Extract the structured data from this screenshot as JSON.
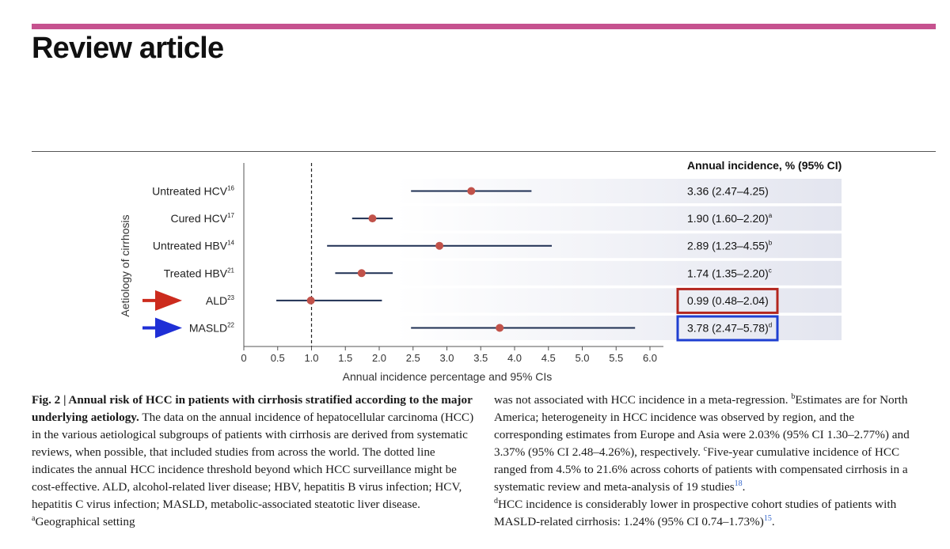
{
  "page": {
    "header_title": "Review article"
  },
  "chart_data": {
    "type": "forest",
    "ylabel": "Aetiology of cirrhosis",
    "xlabel": "Annual incidence percentage and 95% CIs",
    "xlim": [
      0,
      6.0
    ],
    "x_ticks": [
      "0",
      "0.5",
      "1.0",
      "1.5",
      "2.0",
      "2.5",
      "3.0",
      "3.5",
      "4.0",
      "4.5",
      "5.0",
      "5.5",
      "6.0"
    ],
    "threshold": 1.0,
    "table_header": "Annual incidence, % (95% CI)",
    "rows": [
      {
        "label": "Untreated HCV",
        "ref": "16",
        "estimate": 3.36,
        "lower": 2.47,
        "upper": 4.25,
        "text": "3.36 (2.47–4.25)",
        "note": ""
      },
      {
        "label": "Cured HCV",
        "ref": "17",
        "estimate": 1.9,
        "lower": 1.6,
        "upper": 2.2,
        "text": "1.90 (1.60–2.20)",
        "note": "a"
      },
      {
        "label": "Untreated HBV",
        "ref": "14",
        "estimate": 2.89,
        "lower": 1.23,
        "upper": 4.55,
        "text": "2.89 (1.23–4.55)",
        "note": "b"
      },
      {
        "label": "Treated HBV",
        "ref": "21",
        "estimate": 1.74,
        "lower": 1.35,
        "upper": 2.2,
        "text": "1.74 (1.35–2.20)",
        "note": "c"
      },
      {
        "label": "ALD",
        "ref": "23",
        "estimate": 0.99,
        "lower": 0.48,
        "upper": 2.04,
        "text": "0.99 (0.48–2.04)",
        "note": "",
        "highlight": "#b3261e"
      },
      {
        "label": "MASLD",
        "ref": "22",
        "estimate": 3.78,
        "lower": 2.47,
        "upper": 5.78,
        "text": "3.78 (2.47–5.78)",
        "note": "d",
        "highlight": "#1f3fd1"
      }
    ],
    "colors": {
      "point": "#c1524a",
      "ci_line": "#1e2f52",
      "band": "#e3e5ef",
      "axis": "#555555",
      "arrow_ald": "#cc2b1d",
      "arrow_masld": "#1f2fd6"
    }
  },
  "caption": {
    "fig_label": "Fig. 2 | Annual risk of HCC in patients with cirrhosis stratified according to the major underlying aetiology.",
    "left_text": " The data on the annual incidence of hepatocellular carcinoma (HCC) in the various aetiological subgroups of patients with cirrhosis are derived from systematic reviews, when possible, that included studies from across the world. The dotted line indicates the annual HCC incidence threshold beyond which HCC surveillance might be cost-effective. ALD, alcohol-related liver disease; HBV, hepatitis B virus infection; HCV, hepatitis C virus infection; MASLD, metabolic-associated steatotic liver disease. ",
    "note_a_mark": "a",
    "note_a_left": "Geographical setting",
    "note_a_right": "was not associated with HCC incidence in a meta-regression. ",
    "note_b_mark": "b",
    "note_b": "Estimates are for North America; heterogeneity in HCC incidence was observed by region, and the corresponding estimates from Europe and Asia were 2.03% (95% CI 1.30–2.77%) and 3.37% (95% CI 2.48–4.26%), respectively. ",
    "note_c_mark": "c",
    "note_c": "Five-year cumulative incidence of HCC ranged from 4.5% to 21.6% across cohorts of patients with compensated cirrhosis in a systematic review and meta-analysis of 19 studies",
    "note_c_ref": "18",
    "note_c_end": ".",
    "note_d_mark": "d",
    "note_d": "HCC incidence is considerably lower in prospective cohort studies of patients with MASLD-related cirrhosis: 1.24% (95% CI 0.74–1.73%)",
    "note_d_ref": "15",
    "note_d_end": "."
  }
}
